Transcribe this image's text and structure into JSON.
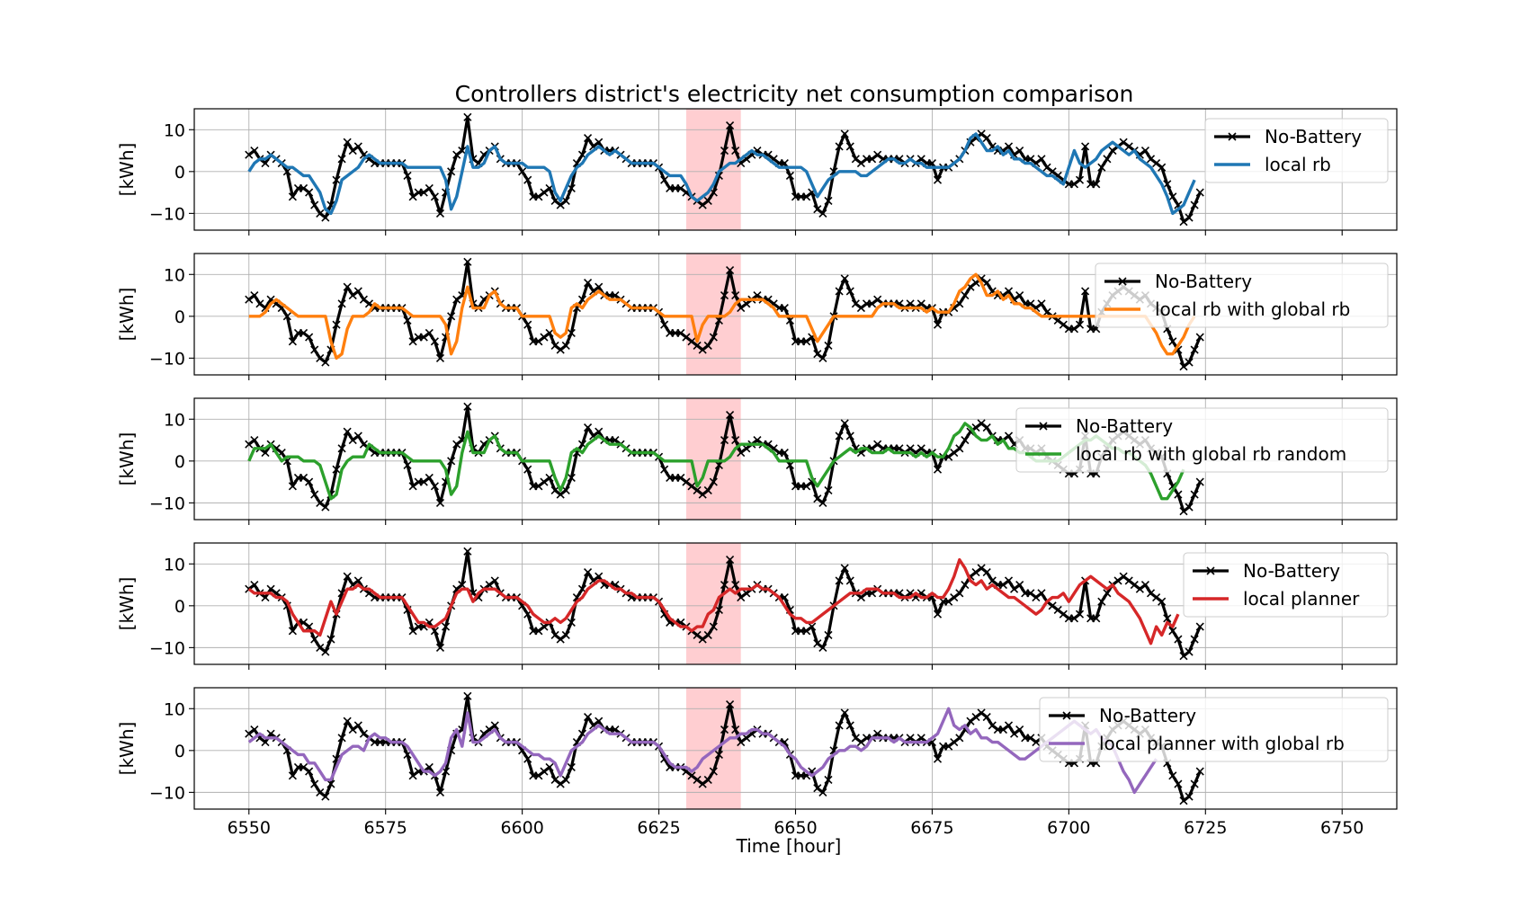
{
  "figure": {
    "title": "Controllers district's electricity net consumption comparison",
    "xlabel": "Time [hour]",
    "ylabel": "[kWh]"
  },
  "colors": {
    "baseline": "#000000",
    "highlight": "#ffb3b8",
    "grid": "#b0b0b0"
  },
  "chart_data": {
    "type": "line",
    "layout": "5 vertically stacked panels sharing the x-axis",
    "xlim": [
      6540,
      6760
    ],
    "ylim": [
      -14,
      15
    ],
    "x_ticks": [
      6550,
      6575,
      6600,
      6625,
      6650,
      6675,
      6700,
      6725,
      6750
    ],
    "y_ticks": [
      -10,
      0,
      10
    ],
    "grid": true,
    "highlight_span": [
      6630,
      6640
    ],
    "baseline": {
      "name": "No-Battery",
      "color": "#000000",
      "marker": "x",
      "x_start": 6550,
      "values": [
        4,
        5,
        3,
        2,
        4,
        3,
        2,
        0,
        -6,
        -4,
        -4,
        -5,
        -8,
        -10,
        -11,
        -8,
        -2,
        3,
        7,
        5,
        6,
        4,
        3,
        2,
        2,
        2,
        2,
        2,
        2,
        -1,
        -6,
        -5,
        -5,
        -4,
        -6,
        -10,
        -5,
        0,
        4,
        5,
        13,
        3,
        2,
        4,
        5,
        6,
        3,
        2,
        2,
        2,
        0,
        -2,
        -6,
        -6,
        -5,
        -4,
        -7,
        -8,
        -7,
        -4,
        2,
        4,
        8,
        6,
        7,
        5,
        5,
        5,
        4,
        3,
        2,
        2,
        2,
        2,
        2,
        1,
        -2,
        -4,
        -4,
        -4,
        -5,
        -6,
        -7,
        -8,
        -7,
        -5,
        -1,
        5,
        11,
        5,
        2,
        3,
        4,
        5,
        4,
        4,
        3,
        2,
        2,
        -1,
        -6,
        -6,
        -6,
        -5,
        -9,
        -10,
        -7,
        0,
        6,
        9,
        6,
        3,
        2,
        3,
        3,
        4,
        3,
        3,
        3,
        3,
        2,
        3,
        2,
        3,
        2,
        2,
        -2,
        1,
        1,
        2,
        3,
        5,
        7,
        8,
        9,
        8,
        6,
        5,
        5,
        6,
        4,
        5,
        3,
        3,
        2,
        3,
        1,
        0,
        -1,
        -2,
        -3,
        -3,
        -2,
        6,
        -3,
        -3,
        1,
        3,
        5,
        6,
        7,
        6,
        5,
        4,
        5,
        3,
        2,
        1,
        -3,
        -6,
        -8,
        -12,
        -11,
        -8,
        -5
      ]
    },
    "panels": [
      {
        "name": "local rb",
        "color": "#1f77b4",
        "x_start": 6550,
        "values": [
          0,
          2,
          3,
          3,
          4,
          3,
          2,
          1,
          1,
          0,
          -1,
          -1,
          -3,
          -5,
          -9,
          -10,
          -7,
          -2,
          -1,
          0,
          1,
          3,
          4,
          3,
          2,
          2,
          2,
          2,
          2,
          1,
          1,
          1,
          1,
          1,
          1,
          1,
          -2,
          -9,
          -6,
          0,
          6,
          1,
          1,
          2,
          5,
          6,
          3,
          2,
          2,
          2,
          2,
          1,
          1,
          1,
          1,
          0,
          -5,
          -7,
          -4,
          -1,
          1,
          2,
          4,
          5,
          6,
          5,
          4,
          5,
          4,
          3,
          2,
          2,
          2,
          2,
          2,
          1,
          0,
          -1,
          -1,
          -1,
          -3,
          -6,
          -7,
          -6,
          -5,
          -3,
          0,
          1,
          2,
          2,
          3,
          4,
          5,
          4,
          4,
          3,
          2,
          1,
          1,
          1,
          1,
          1,
          0,
          -3,
          -6,
          -4,
          -2,
          -1,
          0,
          0,
          0,
          0,
          -1,
          -1,
          0,
          1,
          2,
          3,
          3,
          2,
          2,
          3,
          2,
          2,
          1,
          1,
          1,
          1,
          1,
          2,
          3,
          5,
          8,
          9,
          7,
          5,
          5,
          6,
          4,
          5,
          3,
          3,
          2,
          2,
          1,
          0,
          -1,
          -1,
          -2,
          -3,
          1,
          5,
          2,
          1,
          2,
          3,
          5,
          6,
          7,
          6,
          5,
          4,
          5,
          3,
          2,
          1,
          -1,
          -3,
          -6,
          -10,
          -9,
          -8,
          -5,
          -2
        ]
      },
      {
        "name": "local rb with global rb",
        "color": "#ff7f0e",
        "x_start": 6550,
        "values": [
          0,
          0,
          0,
          1,
          3,
          4,
          3,
          2,
          1,
          0,
          0,
          0,
          0,
          0,
          0,
          -6,
          -10,
          -9,
          -3,
          0,
          0,
          0,
          1,
          3,
          2,
          2,
          2,
          2,
          2,
          1,
          0,
          0,
          0,
          0,
          0,
          0,
          -2,
          -9,
          -6,
          2,
          7,
          2,
          2,
          2,
          5,
          6,
          3,
          2,
          2,
          2,
          0,
          0,
          0,
          0,
          0,
          0,
          -4,
          -5,
          -4,
          2,
          3,
          2,
          4,
          5,
          6,
          5,
          4,
          4,
          4,
          3,
          2,
          2,
          2,
          2,
          2,
          1,
          0,
          0,
          0,
          0,
          0,
          0,
          -6,
          -2,
          0,
          0,
          0,
          0,
          1,
          3,
          4,
          4,
          4,
          4,
          4,
          3,
          2,
          0,
          0,
          0,
          0,
          0,
          0,
          -3,
          -6,
          -4,
          -2,
          0,
          0,
          0,
          0,
          0,
          0,
          0,
          0,
          2,
          3,
          3,
          3,
          2,
          2,
          2,
          2,
          2,
          1,
          2,
          1,
          1,
          1,
          3,
          6,
          7,
          9,
          10,
          8,
          5,
          5,
          6,
          4,
          5,
          3,
          3,
          2,
          2,
          1,
          0,
          0,
          0,
          0,
          0,
          0,
          0,
          0,
          0,
          0,
          0,
          0,
          0,
          0,
          0,
          0,
          0,
          0,
          0,
          0,
          -2,
          -4,
          -7,
          -9,
          -9,
          -7,
          -5,
          -2,
          0
        ]
      },
      {
        "name": "local rb with global rb random",
        "color": "#2ca02c",
        "x_start": 6550,
        "values": [
          0,
          3,
          3,
          3,
          4,
          2,
          0,
          1,
          1,
          1,
          0,
          0,
          0,
          -1,
          -5,
          -9,
          -8,
          -2,
          0,
          1,
          1,
          1,
          4,
          3,
          2,
          2,
          2,
          2,
          2,
          1,
          0,
          0,
          0,
          0,
          0,
          0,
          -2,
          -8,
          -6,
          2,
          7,
          2,
          2,
          2,
          5,
          6,
          3,
          2,
          2,
          2,
          0,
          0,
          0,
          0,
          0,
          0,
          -4,
          -7,
          -4,
          2,
          3,
          2,
          4,
          5,
          6,
          5,
          4,
          4,
          4,
          3,
          2,
          2,
          2,
          2,
          2,
          1,
          0,
          0,
          0,
          0,
          0,
          0,
          -6,
          -4,
          0,
          0,
          0,
          0,
          1,
          3,
          4,
          4,
          4,
          4,
          4,
          3,
          2,
          0,
          0,
          0,
          0,
          0,
          0,
          -4,
          -6,
          -4,
          -2,
          0,
          1,
          2,
          3,
          2,
          3,
          3,
          2,
          2,
          2,
          3,
          2,
          2,
          2,
          2,
          1,
          2,
          1,
          2,
          1,
          1,
          3,
          6,
          7,
          9,
          8,
          6,
          5,
          5,
          6,
          4,
          5,
          3,
          3,
          2,
          2,
          1,
          0,
          0,
          0,
          0,
          0,
          1,
          2,
          3,
          4,
          5,
          5,
          6,
          5,
          4,
          3,
          3,
          2,
          2,
          1,
          0,
          -1,
          -3,
          -6,
          -9,
          -9,
          -7,
          -5,
          -2
        ]
      },
      {
        "name": "local planner",
        "color": "#d62728",
        "x_start": 6550,
        "values": [
          4,
          3,
          3,
          3,
          3,
          2,
          2,
          1,
          -2,
          -4,
          -6,
          -6,
          -6,
          -7,
          -3,
          1,
          -2,
          1,
          4,
          4,
          5,
          4,
          4,
          3,
          2,
          2,
          2,
          2,
          2,
          0,
          -2,
          -4,
          -4,
          -5,
          -5,
          -4,
          -3,
          0,
          3,
          4,
          4,
          1,
          3,
          4,
          4,
          4,
          3,
          2,
          2,
          2,
          1,
          0,
          -2,
          -3,
          -4,
          -4,
          -3,
          -4,
          -3,
          -1,
          1,
          2,
          4,
          5,
          6,
          6,
          5,
          4,
          4,
          3,
          3,
          2,
          2,
          2,
          2,
          1,
          -1,
          -3,
          -4,
          -5,
          -5,
          -6,
          -5,
          -5,
          -2,
          -1,
          2,
          3,
          4,
          3,
          4,
          4,
          4,
          5,
          4,
          4,
          3,
          2,
          0,
          -2,
          -3,
          -3,
          -4,
          -4,
          -3,
          -2,
          -1,
          0,
          1,
          2,
          3,
          3,
          3,
          4,
          4,
          4,
          3,
          3,
          3,
          2,
          2,
          2,
          3,
          2,
          2,
          3,
          2,
          2,
          4,
          7,
          11,
          9,
          6,
          5,
          6,
          4,
          5,
          4,
          3,
          2,
          2,
          1,
          0,
          -1,
          -2,
          -1,
          1,
          2,
          2,
          3,
          1,
          3,
          5,
          6,
          7,
          6,
          5,
          4,
          5,
          3,
          2,
          1,
          -1,
          -3,
          -6,
          -9,
          -5,
          -7,
          -4,
          -5,
          -2
        ]
      },
      {
        "name": "local planner with global rb",
        "color": "#9467bd",
        "x_start": 6550,
        "values": [
          2,
          3,
          4,
          3,
          3,
          3,
          2,
          1,
          0,
          -1,
          -1,
          -3,
          -3,
          -5,
          -7,
          -7,
          -4,
          -1,
          0,
          1,
          1,
          0,
          3,
          4,
          3,
          3,
          2,
          2,
          2,
          1,
          -1,
          -3,
          -5,
          -5,
          -6,
          -5,
          -3,
          3,
          5,
          1,
          9,
          2,
          2,
          3,
          4,
          5,
          3,
          2,
          2,
          2,
          1,
          0,
          -1,
          -1,
          -2,
          -2,
          -3,
          -6,
          -3,
          0,
          1,
          2,
          4,
          5,
          6,
          5,
          4,
          4,
          4,
          3,
          2,
          2,
          2,
          2,
          2,
          1,
          -1,
          -3,
          -4,
          -4,
          -4,
          -5,
          -4,
          -2,
          -1,
          0,
          1,
          2,
          3,
          3,
          4,
          4,
          5,
          5,
          4,
          4,
          3,
          2,
          1,
          -1,
          -2,
          -4,
          -5,
          -6,
          -5,
          -4,
          -2,
          -1,
          0,
          0,
          1,
          1,
          0,
          1,
          3,
          3,
          3,
          3,
          2,
          3,
          2,
          2,
          2,
          2,
          2,
          3,
          4,
          7,
          10,
          6,
          5,
          6,
          4,
          5,
          3,
          3,
          2,
          2,
          1,
          0,
          -1,
          -2,
          -2,
          -1,
          0,
          1,
          2,
          3,
          4,
          5,
          6,
          7,
          6,
          5,
          4,
          5,
          3,
          2,
          1,
          -2,
          -5,
          -7,
          -10,
          -8,
          -6,
          -4,
          -2
        ]
      }
    ]
  }
}
